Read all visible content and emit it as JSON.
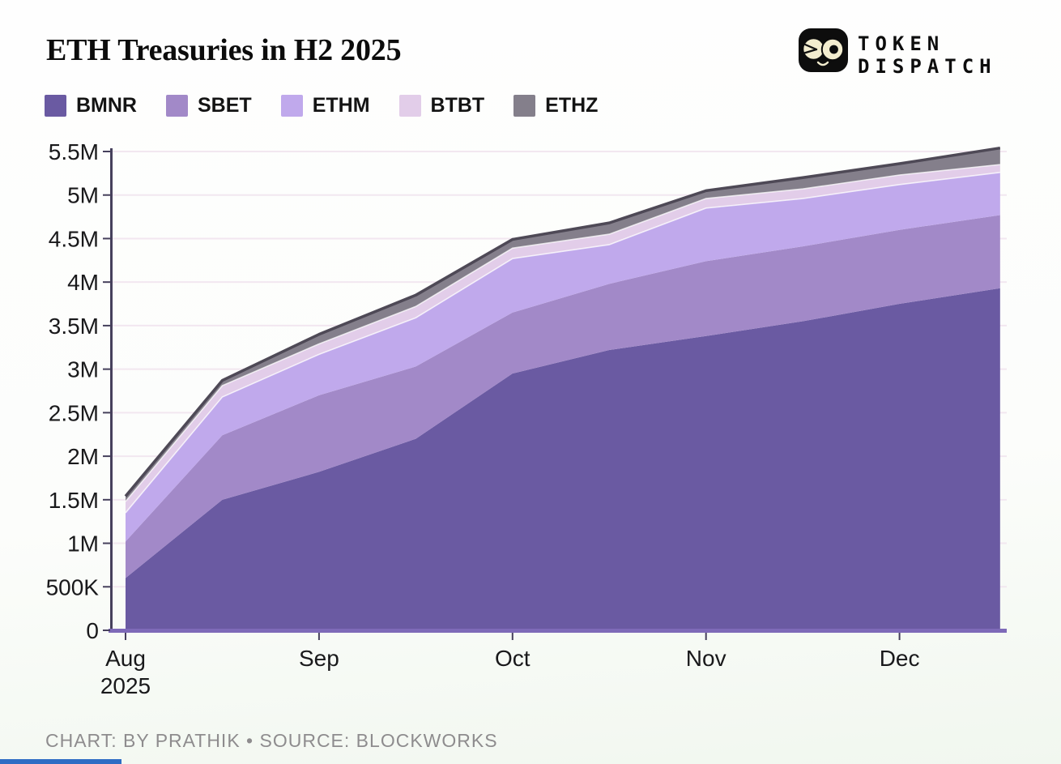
{
  "page": {
    "title": "ETH Treasuries in H2 2025"
  },
  "brand": {
    "line1": "TOKEN",
    "line2": "DISPATCH"
  },
  "legend": [
    {
      "label": "BMNR",
      "color": "#6a5aa2"
    },
    {
      "label": "SBET",
      "color": "#a289c8"
    },
    {
      "label": "ETHM",
      "color": "#c0a9ec"
    },
    {
      "label": "BTBT",
      "color": "#e2cde9"
    },
    {
      "label": "ETHZ",
      "color": "#847f8b"
    }
  ],
  "footer": {
    "credit": "CHART: BY PRATHIK • SOURCE: BLOCKWORKS"
  },
  "chart_data": {
    "type": "area",
    "stacked": true,
    "title": "ETH Treasuries in H2 2025",
    "unit": "millions of ETH",
    "x_unit": "months from Aug 1 2025",
    "x": [
      0,
      0.5,
      1,
      1.5,
      2,
      2.5,
      3,
      3.5,
      4,
      4.52
    ],
    "series": [
      {
        "name": "BMNR",
        "color": "#6a5aa2",
        "values": [
          0.6,
          1.5,
          1.82,
          2.2,
          2.95,
          3.22,
          3.38,
          3.55,
          3.75,
          3.93
        ]
      },
      {
        "name": "SBET",
        "color": "#a289c8",
        "values": [
          0.42,
          0.74,
          0.88,
          0.83,
          0.7,
          0.76,
          0.86,
          0.86,
          0.85,
          0.84
        ]
      },
      {
        "name": "ETHM",
        "color": "#c0a9ec",
        "values": [
          0.33,
          0.44,
          0.47,
          0.56,
          0.62,
          0.45,
          0.61,
          0.55,
          0.52,
          0.49
        ]
      },
      {
        "name": "BTBT",
        "color": "#e2cde9",
        "values": [
          0.13,
          0.13,
          0.12,
          0.13,
          0.12,
          0.12,
          0.11,
          0.11,
          0.11,
          0.09
        ]
      },
      {
        "name": "ETHZ",
        "color": "#847f8b",
        "values": [
          0.06,
          0.06,
          0.11,
          0.13,
          0.1,
          0.13,
          0.09,
          0.13,
          0.13,
          0.19
        ]
      }
    ],
    "totals": [
      1.54,
      2.87,
      3.4,
      3.85,
      4.49,
      4.68,
      5.05,
      5.2,
      5.36,
      5.54
    ],
    "x_ticks": [
      {
        "m": 0,
        "label": "Aug",
        "sublabel": "2025"
      },
      {
        "m": 1,
        "label": "Sep"
      },
      {
        "m": 2,
        "label": "Oct"
      },
      {
        "m": 3,
        "label": "Nov"
      },
      {
        "m": 4,
        "label": "Dec"
      }
    ],
    "y_ticks": [
      {
        "v": 0,
        "label": "0"
      },
      {
        "v": 0.5,
        "label": "500K"
      },
      {
        "v": 1,
        "label": "1M"
      },
      {
        "v": 1.5,
        "label": "1.5M"
      },
      {
        "v": 2,
        "label": "2M"
      },
      {
        "v": 2.5,
        "label": "2.5M"
      },
      {
        "v": 3,
        "label": "3M"
      },
      {
        "v": 3.5,
        "label": "3.5M"
      },
      {
        "v": 4,
        "label": "4M"
      },
      {
        "v": 4.5,
        "label": "4.5M"
      },
      {
        "v": 5,
        "label": "5M"
      },
      {
        "v": 5.5,
        "label": "5.5M"
      }
    ],
    "ylim": [
      0,
      5.5
    ],
    "grid": "horizontal",
    "legend_position": "top-left",
    "grid_color": "#f2e7f0",
    "axis_color": "#46405c",
    "baseline_color": "#7e6ab8",
    "top_outline_color": "#4e4956",
    "band_divider_color": "rgba(255,255,255,0.75)"
  }
}
